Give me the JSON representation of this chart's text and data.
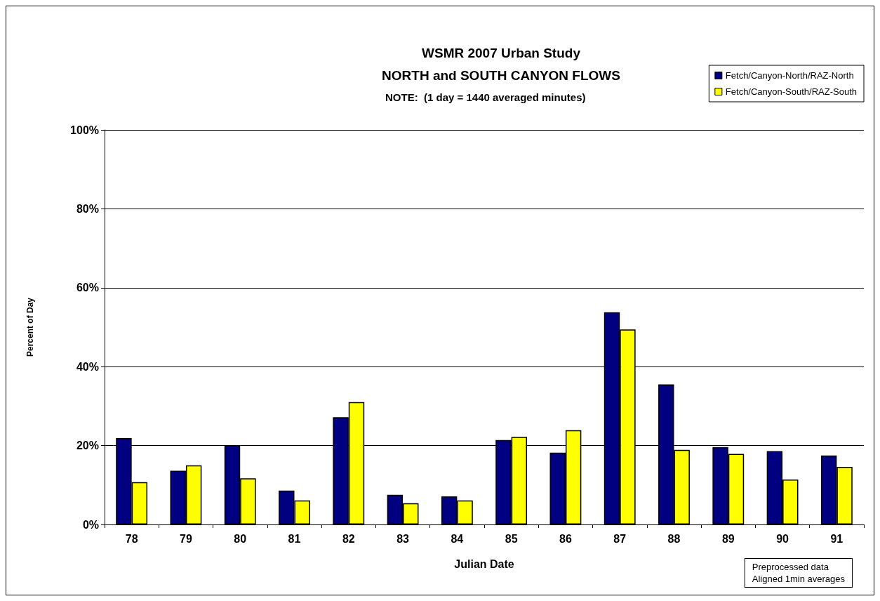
{
  "chart_data": {
    "type": "bar",
    "title": "WSMR 2007 Urban Study",
    "subtitle": "NORTH and SOUTH CANYON FLOWS",
    "annotations": [
      "NOTE:  (1 day = 1440 averaged minutes)",
      "Preprocessed data\nAligned 1min averages"
    ],
    "xlabel": "Julian Date",
    "ylabel": "Percent of Day",
    "categories": [
      "78",
      "79",
      "80",
      "81",
      "82",
      "83",
      "84",
      "85",
      "86",
      "87",
      "88",
      "89",
      "90",
      "91"
    ],
    "series": [
      {
        "name": "Fetch/Canyon-North/RAZ-North",
        "color": "#000080",
        "values": [
          21.9,
          13.6,
          20.1,
          8.6,
          27.2,
          7.5,
          7.1,
          21.4,
          18.2,
          53.8,
          35.5,
          19.6,
          18.6,
          17.5
        ]
      },
      {
        "name": "Fetch/Canyon-South/RAZ-South",
        "color": "#ffff00",
        "values": [
          10.7,
          15.0,
          11.7,
          6.1,
          31.0,
          5.4,
          6.1,
          22.2,
          23.9,
          49.4,
          18.9,
          17.9,
          11.4,
          14.6
        ]
      }
    ],
    "ylim": [
      0,
      100
    ],
    "yticks": [
      {
        "value": 0,
        "label": "0%"
      },
      {
        "value": 20,
        "label": "20%"
      },
      {
        "value": 40,
        "label": "40%"
      },
      {
        "value": 60,
        "label": "60%"
      },
      {
        "value": 80,
        "label": "80%"
      },
      {
        "value": 100,
        "label": "100%"
      }
    ],
    "grid": "y",
    "legend": "top right"
  }
}
